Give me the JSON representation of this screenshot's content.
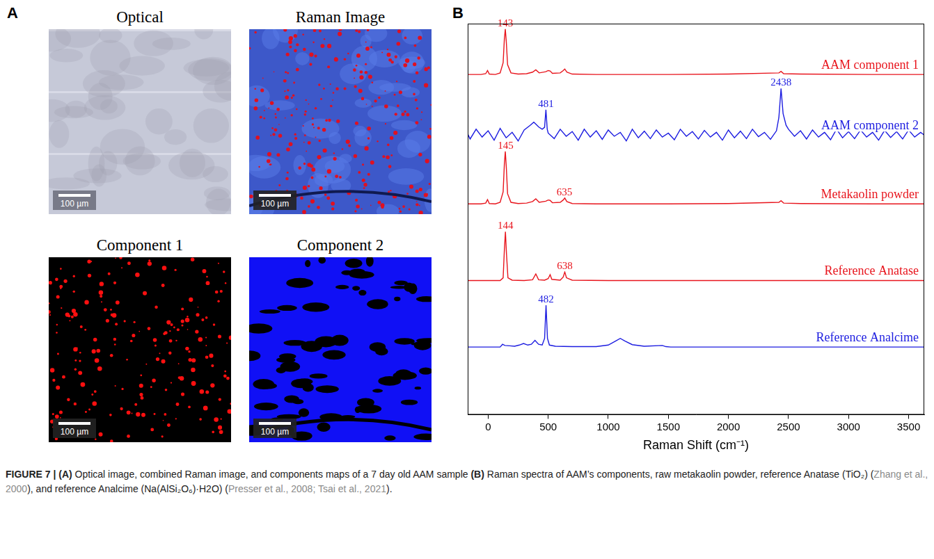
{
  "panels": [
    {
      "letter": "A",
      "images": [
        {
          "title": "Optical",
          "scale_bar": "100 µm"
        },
        {
          "title": "Raman Image",
          "scale_bar": "100 µm"
        },
        {
          "title": "Component 1",
          "scale_bar": "100 µm"
        },
        {
          "title": "Component 2",
          "scale_bar": "100 µm"
        }
      ]
    },
    {
      "letter": "B"
    }
  ],
  "chart_data": {
    "type": "line",
    "x_label": "Raman Shift (cm⁻¹)",
    "xlim": [
      -170,
      3630
    ],
    "xticks": [
      0,
      500,
      1000,
      1500,
      2000,
      2500,
      3000,
      3500
    ],
    "ylim": [
      0,
      10
    ],
    "tick_labels": "x",
    "grid": false,
    "series": [
      {
        "name": "AAM component 1",
        "color": "#e8141c",
        "x": [
          -170,
          -60,
          -20,
          -5,
          10,
          60,
          100,
          125,
          135,
          143,
          151,
          162,
          190,
          250,
          320,
          370,
          397,
          425,
          480,
          500,
          516,
          535,
          600,
          625,
          638,
          655,
          700,
          900,
          1500,
          2000,
          2420,
          2438,
          2460,
          2600,
          3200,
          3630
        ],
        "values": [
          8.7,
          8.7,
          8.72,
          8.8,
          8.71,
          8.7,
          8.74,
          9.0,
          9.6,
          9.86,
          9.55,
          8.95,
          8.74,
          8.71,
          8.72,
          8.76,
          8.82,
          8.74,
          8.77,
          8.8,
          8.79,
          8.73,
          8.74,
          8.8,
          8.84,
          8.76,
          8.71,
          8.7,
          8.7,
          8.71,
          8.74,
          8.78,
          8.72,
          8.71,
          8.7,
          8.7
        ],
        "annotations": [
          {
            "text": "143",
            "x": 143,
            "y": 9.86
          }
        ]
      },
      {
        "name": "AAM component 2",
        "color": "#1c1ce0",
        "x": [
          -170,
          -150,
          -100,
          -50,
          0,
          50,
          100,
          150,
          200,
          250,
          300,
          350,
          380,
          400,
          420,
          450,
          470,
          481,
          492,
          500,
          550,
          600,
          650,
          700,
          750,
          800,
          850,
          900,
          950,
          1000,
          1050,
          1100,
          1150,
          1200,
          1250,
          1300,
          1350,
          1400,
          1450,
          1500,
          1550,
          1600,
          1650,
          1700,
          1750,
          1800,
          1850,
          1900,
          1950,
          2000,
          2050,
          2100,
          2150,
          2200,
          2250,
          2300,
          2350,
          2400,
          2420,
          2438,
          2455,
          2480,
          2500,
          2550,
          2600,
          2650,
          2700,
          2750,
          2800,
          2850,
          2900,
          2950,
          3000,
          3050,
          3100,
          3150,
          3200,
          3250,
          3300,
          3350,
          3400,
          3450,
          3500,
          3550,
          3600,
          3630
        ],
        "values": [
          7.18,
          7.05,
          7.3,
          7.1,
          7.26,
          7.02,
          7.32,
          7.08,
          7.22,
          7.0,
          7.28,
          7.4,
          7.48,
          7.42,
          7.36,
          7.3,
          7.35,
          7.8,
          7.3,
          7.2,
          7.06,
          7.3,
          7.12,
          7.24,
          7.02,
          7.3,
          7.1,
          7.26,
          7.04,
          7.28,
          7.12,
          7.22,
          7.0,
          7.3,
          7.08,
          7.25,
          7.06,
          7.28,
          7.1,
          7.2,
          7.03,
          7.3,
          7.12,
          7.24,
          7.05,
          7.27,
          7.1,
          7.22,
          7.02,
          7.28,
          7.08,
          7.25,
          7.06,
          7.3,
          7.11,
          7.22,
          7.04,
          7.26,
          7.6,
          8.34,
          7.7,
          7.4,
          7.3,
          7.12,
          7.26,
          7.05,
          7.28,
          7.1,
          7.22,
          7.03,
          7.3,
          7.08,
          7.24,
          7.06,
          7.28,
          7.1,
          7.22,
          7.02,
          7.27,
          7.09,
          7.24,
          7.05,
          7.28,
          7.1,
          7.22,
          7.15
        ],
        "annotations": [
          {
            "text": "481",
            "x": 481,
            "y": 7.8
          },
          {
            "text": "2438",
            "x": 2438,
            "y": 8.34
          }
        ]
      },
      {
        "name": "Metakaolin powder",
        "color": "#e8141c",
        "x": [
          -170,
          -60,
          -20,
          -5,
          10,
          60,
          100,
          125,
          135,
          143,
          151,
          162,
          190,
          250,
          320,
          370,
          397,
          425,
          480,
          500,
          516,
          535,
          600,
          625,
          638,
          655,
          700,
          900,
          1500,
          2000,
          2420,
          2438,
          2460,
          2600,
          3200,
          3630
        ],
        "values": [
          5.39,
          5.39,
          5.41,
          5.5,
          5.4,
          5.39,
          5.43,
          5.7,
          6.4,
          6.73,
          6.35,
          5.65,
          5.43,
          5.4,
          5.41,
          5.45,
          5.52,
          5.43,
          5.46,
          5.49,
          5.48,
          5.42,
          5.43,
          5.49,
          5.54,
          5.45,
          5.4,
          5.39,
          5.39,
          5.4,
          5.43,
          5.47,
          5.41,
          5.4,
          5.39,
          5.39
        ],
        "annotations": [
          {
            "text": "145",
            "x": 145,
            "y": 6.73
          },
          {
            "text": "635",
            "x": 635,
            "y": 5.54
          }
        ]
      },
      {
        "name": "Reference Anatase",
        "color": "#e8141c",
        "x": [
          -170,
          100,
          125,
          135,
          144,
          153,
          165,
          200,
          300,
          370,
          397,
          420,
          470,
          500,
          516,
          530,
          600,
          625,
          638,
          652,
          700,
          1000,
          2000,
          3630
        ],
        "values": [
          3.43,
          3.43,
          3.5,
          4.2,
          4.68,
          4.1,
          3.5,
          3.44,
          3.43,
          3.45,
          3.6,
          3.45,
          3.44,
          3.48,
          3.58,
          3.46,
          3.44,
          3.52,
          3.65,
          3.5,
          3.44,
          3.43,
          3.43,
          3.43
        ],
        "annotations": [
          {
            "text": "144",
            "x": 144,
            "y": 4.68
          },
          {
            "text": "638",
            "x": 638,
            "y": 3.65
          }
        ]
      },
      {
        "name": "Reference Analcime",
        "color": "#1c1ce0",
        "x": [
          -170,
          100,
          120,
          140,
          180,
          220,
          260,
          295,
          330,
          360,
          390,
          420,
          450,
          470,
          482,
          494,
          510,
          560,
          700,
          900,
          1000,
          1060,
          1100,
          1140,
          1200,
          1300,
          1450,
          1480,
          1520,
          2000,
          3630
        ],
        "values": [
          1.73,
          1.73,
          1.8,
          1.77,
          1.76,
          1.75,
          1.78,
          1.82,
          1.78,
          1.8,
          1.9,
          1.8,
          1.78,
          1.95,
          2.8,
          1.95,
          1.78,
          1.75,
          1.74,
          1.74,
          1.78,
          1.88,
          1.95,
          1.88,
          1.79,
          1.75,
          1.77,
          1.74,
          1.73,
          1.73,
          1.73
        ],
        "annotations": [
          {
            "text": "482",
            "x": 482,
            "y": 2.8
          }
        ]
      }
    ]
  },
  "caption": [
    {
      "text": "FIGURE 7 | ",
      "bold": true
    },
    {
      "text": "(A)",
      "bold": true
    },
    {
      "text": " Optical image, combined Raman image, and components maps of a 7 day old AAM sample "
    },
    {
      "text": "(B)",
      "bold": true
    },
    {
      "text": " Raman spectra of AAM’s components, raw metakaolin powder, reference Anatase (TiO₂) ("
    },
    {
      "text": "Zhang et al., 2000",
      "cite": true
    },
    {
      "text": "), and reference Analcime (Na(AlSi₂O₆)·H2O) ("
    },
    {
      "text": "Presser et al., 2008; Tsai et al., 2021",
      "cite": true
    },
    {
      "text": ")."
    }
  ]
}
